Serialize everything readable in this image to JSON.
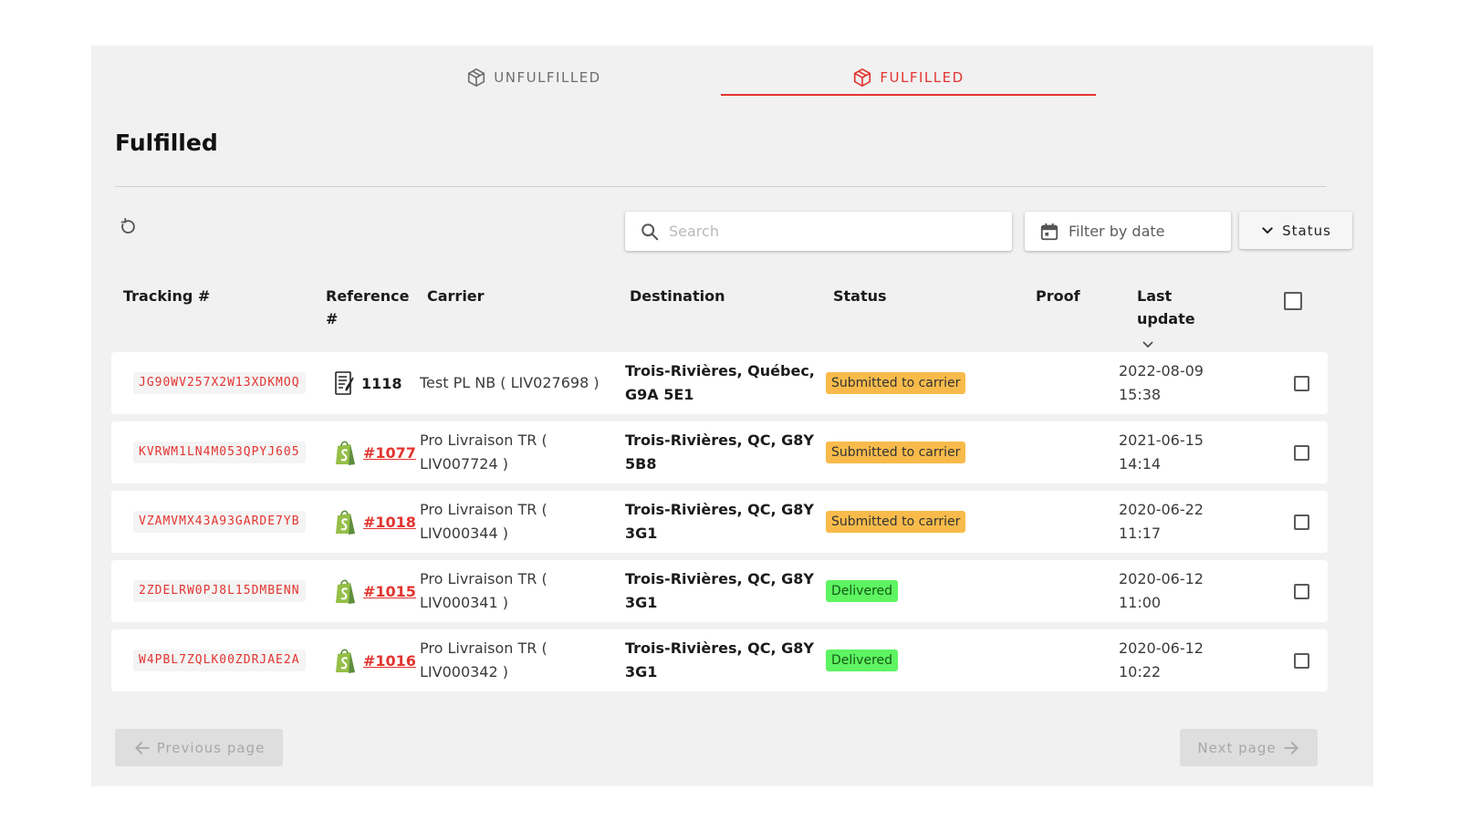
{
  "tabs": [
    {
      "label": "UNFULFILLED",
      "icon": "box-icon"
    },
    {
      "label": "FULFILLED",
      "icon": "box-icon",
      "active": true
    }
  ],
  "page_title": "Fulfilled",
  "toolbar": {
    "search_placeholder": "Search",
    "date_filter_label": "Filter by date",
    "status_label": "Status"
  },
  "columns": {
    "tracking": "Tracking #",
    "reference": "Reference #",
    "carrier": "Carrier",
    "destination": "Destination",
    "status": "Status",
    "proof": "Proof",
    "last_update": "Last update"
  },
  "rows": [
    {
      "tracking": "JG90WV257X2W13XDKMOQ",
      "reference": "1118",
      "reference_type": "packing-list",
      "carrier": "Test PL NB ( LIV027698 )",
      "destination": "Trois-Rivières, Québec, G9A 5E1",
      "status": "Submitted to carrier",
      "last_update_date": "2022-08-09",
      "last_update_time": "15:38"
    },
    {
      "tracking": "KVRWM1LN4M053QPYJ605",
      "reference": "#1077",
      "reference_type": "shopify",
      "carrier": "Pro Livraison TR ( LIV007724 )",
      "destination": "Trois-Rivières, QC, G8Y 5B8",
      "status": "Submitted to carrier",
      "last_update_date": "2021-06-15",
      "last_update_time": "14:14"
    },
    {
      "tracking": "VZAMVMX43A93GARDE7YB",
      "reference": "#1018",
      "reference_type": "shopify",
      "carrier": "Pro Livraison TR ( LIV000344 )",
      "destination": "Trois-Rivières, QC, G8Y 3G1",
      "status": "Submitted to carrier",
      "last_update_date": "2020-06-22",
      "last_update_time": "11:17"
    },
    {
      "tracking": "2ZDELRW0PJ8L15DMBENN",
      "reference": "#1015",
      "reference_type": "shopify",
      "carrier": "Pro Livraison TR ( LIV000341 )",
      "destination": "Trois-Rivières, QC, G8Y 3G1",
      "status": "Delivered",
      "last_update_date": "2020-06-12",
      "last_update_time": "11:00"
    },
    {
      "tracking": "W4PBL7ZQLK00ZDRJAE2A",
      "reference": "#1016",
      "reference_type": "shopify",
      "carrier": "Pro Livraison TR ( LIV000342 )",
      "destination": "Trois-Rivières, QC, G8Y 3G1",
      "status": "Delivered",
      "last_update_date": "2020-06-12",
      "last_update_time": "10:22"
    }
  ],
  "pager": {
    "prev_label": "Previous page",
    "next_label": "Next page"
  },
  "colors": {
    "accent": "#e3342f",
    "submitted": "#f8bb4b",
    "delivered": "#5ef462",
    "shopify": "#95bf47"
  }
}
